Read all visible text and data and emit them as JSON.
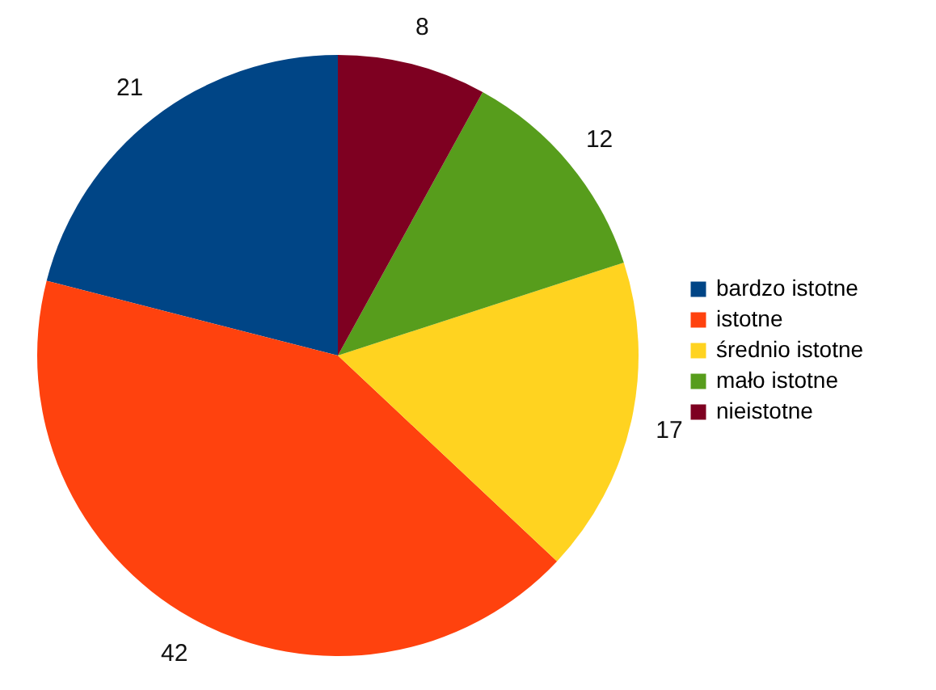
{
  "chart_data": {
    "type": "pie",
    "categories": [
      "bardzo istotne",
      "istotne",
      "średnio istotne",
      "mało istotne",
      "nieistotne"
    ],
    "values": [
      21,
      42,
      17,
      12,
      8
    ],
    "colors": [
      "#004586",
      "#ff420e",
      "#ffd320",
      "#579d1c",
      "#7e0021"
    ],
    "data_labels": true,
    "legend": "right"
  }
}
